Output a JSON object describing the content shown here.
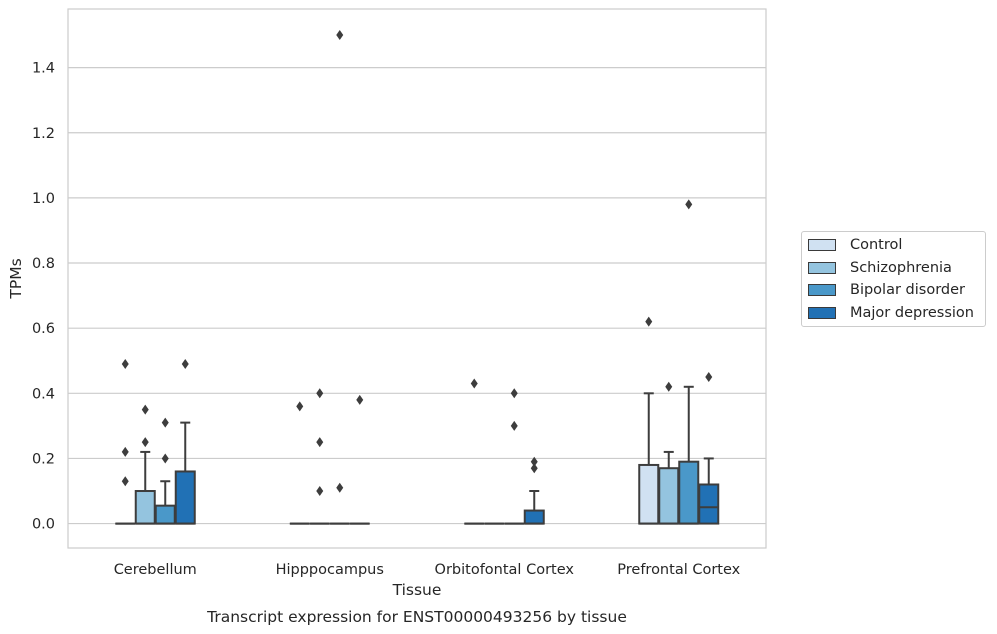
{
  "chart_data": {
    "type": "box",
    "title": "Transcript expression for ENST00000493256 by tissue",
    "xlabel": "Tissue",
    "ylabel": "TPMs",
    "ylim": [
      -0.075,
      1.58
    ],
    "yticks": [
      "0.0",
      "0.2",
      "0.4",
      "0.6",
      "0.8",
      "1.0",
      "1.2",
      "1.4"
    ],
    "ytick_values": [
      0.0,
      0.2,
      0.4,
      0.6,
      0.8,
      1.0,
      1.2,
      1.4
    ],
    "grid": true,
    "legend_position": "right",
    "categories": [
      "Cerebellum",
      "Hipppocampus",
      "Orbitofontal Cortex",
      "Prefrontal Cortex"
    ],
    "series": [
      {
        "name": "Control",
        "color": "#d0e1f2",
        "boxes": [
          {
            "q1": 0.0,
            "median": 0.0,
            "q3": 0.0,
            "whisker_low": 0.0,
            "whisker_high": 0.0,
            "outliers": [
              0.49,
              0.22,
              0.13
            ]
          },
          {
            "q1": 0.0,
            "median": 0.0,
            "q3": 0.0,
            "whisker_low": 0.0,
            "whisker_high": 0.0,
            "outliers": [
              0.36
            ]
          },
          {
            "q1": 0.0,
            "median": 0.0,
            "q3": 0.0,
            "whisker_low": 0.0,
            "whisker_high": 0.0,
            "outliers": [
              0.43
            ]
          },
          {
            "q1": 0.0,
            "median": 0.0,
            "q3": 0.18,
            "whisker_low": 0.0,
            "whisker_high": 0.4,
            "outliers": [
              0.62
            ]
          }
        ]
      },
      {
        "name": "Schizophrenia",
        "color": "#94c4df",
        "boxes": [
          {
            "q1": 0.0,
            "median": 0.0,
            "q3": 0.1,
            "whisker_low": 0.0,
            "whisker_high": 0.22,
            "outliers": [
              0.35,
              0.25
            ]
          },
          {
            "q1": 0.0,
            "median": 0.0,
            "q3": 0.0,
            "whisker_low": 0.0,
            "whisker_high": 0.0,
            "outliers": [
              0.4,
              0.25,
              0.1
            ]
          },
          {
            "q1": 0.0,
            "median": 0.0,
            "q3": 0.0,
            "whisker_low": 0.0,
            "whisker_high": 0.0,
            "outliers": []
          },
          {
            "q1": 0.0,
            "median": 0.0,
            "q3": 0.17,
            "whisker_low": 0.0,
            "whisker_high": 0.22,
            "outliers": [
              0.42
            ]
          }
        ]
      },
      {
        "name": "Bipolar disorder",
        "color": "#4a98c9",
        "boxes": [
          {
            "q1": 0.0,
            "median": 0.0,
            "q3": 0.055,
            "whisker_low": 0.0,
            "whisker_high": 0.13,
            "outliers": [
              0.31,
              0.2
            ]
          },
          {
            "q1": 0.0,
            "median": 0.0,
            "q3": 0.0,
            "whisker_low": 0.0,
            "whisker_high": 0.0,
            "outliers": [
              1.5,
              0.11
            ]
          },
          {
            "q1": 0.0,
            "median": 0.0,
            "q3": 0.0,
            "whisker_low": 0.0,
            "whisker_high": 0.0,
            "outliers": [
              0.4,
              0.3
            ]
          },
          {
            "q1": 0.0,
            "median": 0.0,
            "q3": 0.19,
            "whisker_low": 0.0,
            "whisker_high": 0.42,
            "outliers": [
              0.98
            ]
          }
        ]
      },
      {
        "name": "Major depression",
        "color": "#2171b5",
        "boxes": [
          {
            "q1": 0.0,
            "median": 0.0,
            "q3": 0.16,
            "whisker_low": 0.0,
            "whisker_high": 0.31,
            "outliers": [
              0.49
            ]
          },
          {
            "q1": 0.0,
            "median": 0.0,
            "q3": 0.0,
            "whisker_low": 0.0,
            "whisker_high": 0.0,
            "outliers": [
              0.38
            ]
          },
          {
            "q1": 0.0,
            "median": 0.0,
            "q3": 0.04,
            "whisker_low": 0.0,
            "whisker_high": 0.1,
            "outliers": [
              0.19,
              0.17
            ]
          },
          {
            "q1": 0.0,
            "median": 0.05,
            "q3": 0.12,
            "whisker_low": 0.0,
            "whisker_high": 0.2,
            "outliers": [
              0.45
            ]
          }
        ]
      }
    ]
  }
}
